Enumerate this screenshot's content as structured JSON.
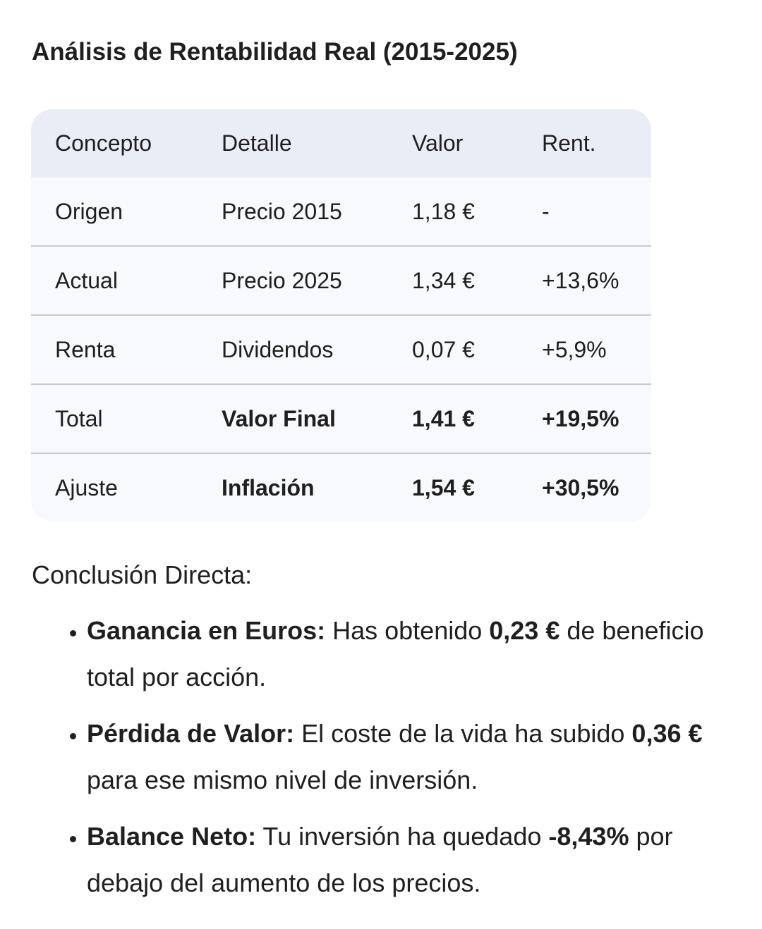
{
  "title": "Análisis de Rentabilidad Real (2015-2025)",
  "table": {
    "headers": [
      "Concepto",
      "Detalle",
      "Valor",
      "Rent."
    ],
    "rows": [
      {
        "concepto": "Origen",
        "detalle": "Precio 2015",
        "valor": "1,18 €",
        "rent": "-"
      },
      {
        "concepto": "Actual",
        "detalle": "Precio 2025",
        "valor": "1,34 €",
        "rent": "+13,6%"
      },
      {
        "concepto": "Renta",
        "detalle": "Dividendos",
        "valor": "0,07 €",
        "rent": "+5,9%"
      },
      {
        "concepto": "Total",
        "detalle": "Valor Final",
        "valor": "1,41 €",
        "rent": "+19,5%"
      },
      {
        "concepto": "Ajuste",
        "detalle": "Inflación",
        "valor": "1,54 €",
        "rent": "+30,5%"
      }
    ]
  },
  "conclusion": {
    "heading": "Conclusión Directa:",
    "bullets": [
      {
        "label": "Ganancia en Euros:",
        "t1": " Has obtenido ",
        "b1": "0,23 €",
        "t2": " de beneficio total por acción."
      },
      {
        "label": "Pérdida de Valor:",
        "t1": " El coste de la vida ha subido ",
        "b1": "0,36 €",
        "t2": " para ese mismo nivel de inversión."
      },
      {
        "label": "Balance Neto:",
        "t1": " Tu inversión ha quedado ",
        "b1": "-8,43%",
        "t2": " por debajo del aumento de los precios."
      }
    ]
  }
}
